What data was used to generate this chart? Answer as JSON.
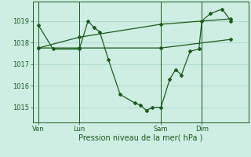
{
  "background_color": "#ceeee4",
  "plot_bg_color": "#ceeee4",
  "grid_color": "#aad8cc",
  "line_color": "#1a5c1a",
  "xlabel": "Pression niveau de la mer( hPa )",
  "ylim": [
    1014.3,
    1019.9
  ],
  "yticks": [
    1015,
    1016,
    1017,
    1018,
    1019
  ],
  "xtick_labels": [
    "Ven",
    "Lun",
    "Sam",
    "Dim"
  ],
  "xtick_positions": [
    0,
    14,
    42,
    56
  ],
  "vline_positions": [
    0,
    14,
    42,
    56
  ],
  "xlim": [
    -2,
    72
  ],
  "series1_x": [
    0,
    5,
    14,
    17,
    19,
    21,
    24,
    28,
    33,
    35,
    37,
    39,
    42,
    45,
    47,
    49,
    52,
    55,
    56,
    59,
    63,
    66
  ],
  "series1_y": [
    1018.8,
    1017.7,
    1017.7,
    1019.0,
    1018.7,
    1018.5,
    1017.2,
    1015.6,
    1015.2,
    1015.1,
    1014.85,
    1015.0,
    1015.0,
    1016.3,
    1016.75,
    1016.5,
    1017.6,
    1017.7,
    1019.0,
    1019.35,
    1019.55,
    1019.0
  ],
  "series2_x": [
    0,
    14,
    42,
    66
  ],
  "series2_y": [
    1017.75,
    1017.75,
    1017.75,
    1018.15
  ],
  "series3_x": [
    0,
    14,
    42,
    66
  ],
  "series3_y": [
    1017.75,
    1018.25,
    1018.85,
    1019.1
  ],
  "marker_size": 2.0,
  "line_width": 0.9
}
